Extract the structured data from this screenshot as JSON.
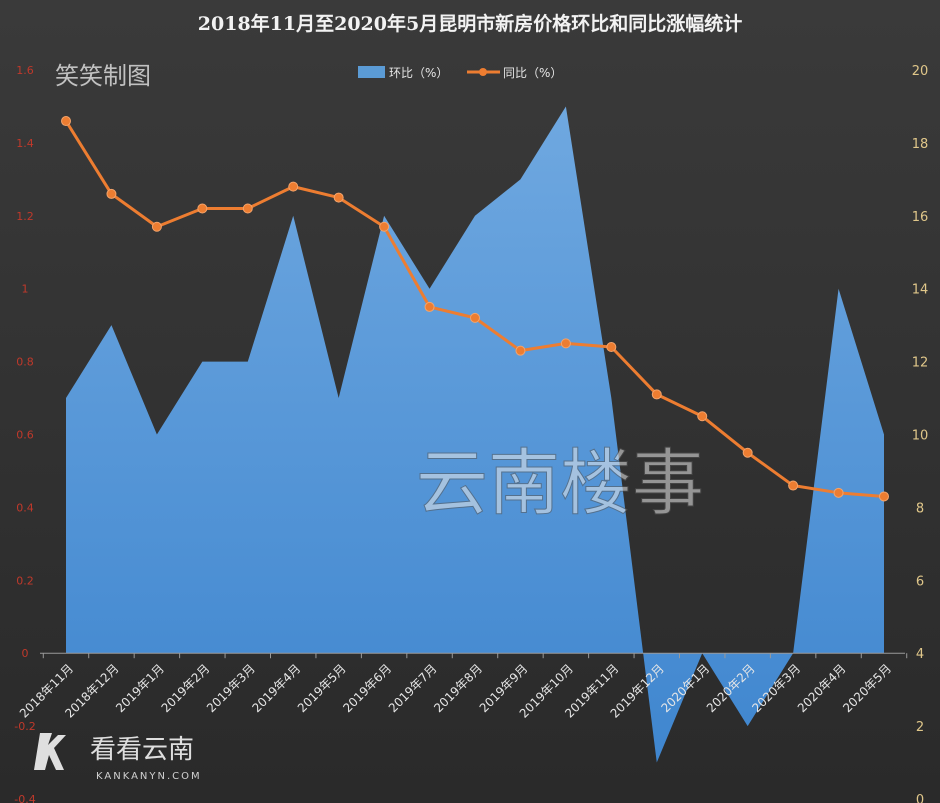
{
  "chart_data": {
    "type": "area",
    "title": "2018年11月至2020年5月昆明市新房价格环比和同比涨幅统计",
    "categories": [
      "2018年11月",
      "2018年12月",
      "2019年1月",
      "2019年2月",
      "2019年3月",
      "2019年4月",
      "2019年5月",
      "2019年6月",
      "2019年7月",
      "2019年8月",
      "2019年9月",
      "2019年10月",
      "2019年11月",
      "2019年12月",
      "2020年1月",
      "2020年2月",
      "2020年3月",
      "2020年4月",
      "2020年5月"
    ],
    "series": [
      {
        "name": "环比（%）",
        "type": "area",
        "axis": "left",
        "color": "#5b9bd5",
        "values": [
          0.7,
          0.9,
          0.6,
          0.8,
          0.8,
          1.2,
          0.7,
          1.2,
          1.0,
          1.2,
          1.3,
          1.5,
          0.7,
          -0.3,
          0.0,
          -0.2,
          0.0,
          1.0,
          0.6
        ]
      },
      {
        "name": "同比（%）",
        "type": "line",
        "axis": "right",
        "color": "#ed7d31",
        "values": [
          18.6,
          16.6,
          15.7,
          16.2,
          16.2,
          16.8,
          16.5,
          15.7,
          13.5,
          13.2,
          12.3,
          12.5,
          12.4,
          11.1,
          10.5,
          9.5,
          8.6,
          8.4,
          8.3
        ]
      }
    ],
    "y_left": {
      "min": -0.4,
      "max": 1.6,
      "step": 0.2,
      "tick_labels": [
        "-0.4",
        "-0.2",
        "0",
        "0.2",
        "0.4",
        "0.6",
        "0.8",
        "1",
        "1.2",
        "1.4",
        "1.6"
      ]
    },
    "y_right": {
      "min": 0,
      "max": 20,
      "step": 2,
      "tick_labels": [
        "0",
        "2",
        "4",
        "6",
        "8",
        "10",
        "12",
        "14",
        "16",
        "18",
        "20"
      ]
    },
    "legend": {
      "placement": "top-center"
    },
    "grid": false
  },
  "watermarks": {
    "top_left": "笑笑制图",
    "center": "云南楼事",
    "bottom_brand": "看看云南",
    "bottom_url": "KANKANYN.COM"
  },
  "colors": {
    "background": "#2f2f2f",
    "area": "#5b9bd5",
    "line": "#ed7d31"
  }
}
